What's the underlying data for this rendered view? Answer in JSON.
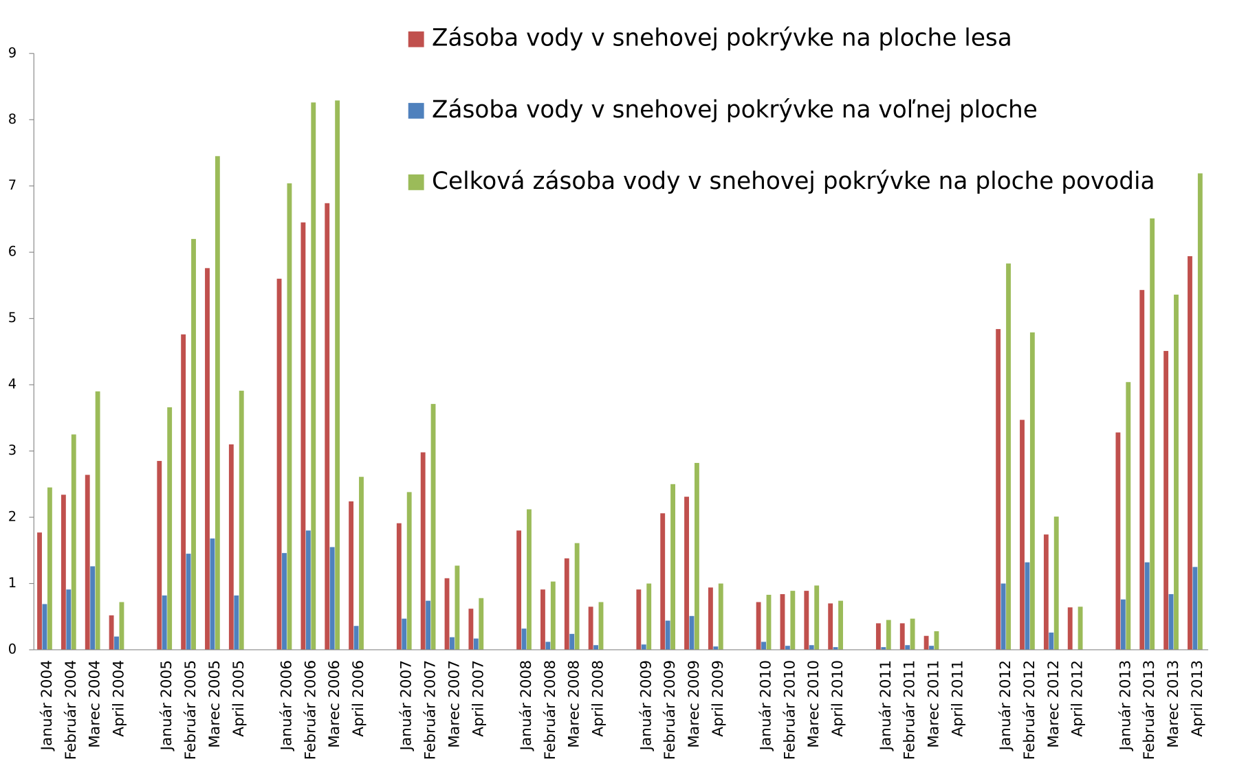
{
  "chart_data": {
    "type": "bar",
    "categories": [
      "Január 2004",
      "Február 2004",
      "Marec 2004",
      "April 2004",
      null,
      "Január 2005",
      "Február 2005",
      "Marec 2005",
      "April 2005",
      null,
      "Január 2006",
      "Február 2006",
      "Marec 2006",
      "April 2006",
      null,
      "Január 2007",
      "Február 2007",
      "Marec 2007",
      "April 2007",
      null,
      "Január 2008",
      "Február 2008",
      "Marec 2008",
      "April 2008",
      null,
      "Január 2009",
      "Február 2009",
      "Marec 2009",
      "April 2009",
      null,
      "Január 2010",
      "Február 2010",
      "Marec 2010",
      "April 2010",
      null,
      "Január 2011",
      "Február 2011",
      "Marec 2011",
      "April 2011",
      null,
      "Január 2012",
      "Február 2012",
      "Marec 2012",
      "April 2012",
      null,
      "Január 2013",
      "Február 2013",
      "Marec 2013",
      "April 2013"
    ],
    "series": [
      {
        "name": "Zásoba vody v snehovej pokrývke na ploche lesa",
        "color": "#c0504d",
        "values": [
          1.77,
          2.34,
          2.64,
          0.52,
          null,
          2.85,
          4.76,
          5.76,
          3.1,
          null,
          5.6,
          6.45,
          6.74,
          2.24,
          null,
          1.91,
          2.98,
          1.08,
          0.62,
          null,
          1.8,
          0.91,
          1.38,
          0.65,
          null,
          0.91,
          2.06,
          2.31,
          0.94,
          null,
          0.72,
          0.84,
          0.89,
          0.7,
          null,
          0.4,
          0.4,
          0.21,
          0,
          null,
          4.84,
          3.47,
          1.74,
          0.64,
          null,
          3.28,
          5.43,
          4.51,
          5.94
        ]
      },
      {
        "name": "Zásoba vody v snehovej pokrývke na voľnej ploche",
        "color": "#4f81bd",
        "values": [
          0.69,
          0.91,
          1.26,
          0.2,
          null,
          0.82,
          1.45,
          1.68,
          0.82,
          null,
          1.46,
          1.8,
          1.55,
          0.36,
          null,
          0.47,
          0.74,
          0.19,
          0.17,
          null,
          0.32,
          0.12,
          0.24,
          0.07,
          null,
          0.08,
          0.44,
          0.51,
          0.05,
          null,
          0.12,
          0.06,
          0.07,
          0.04,
          null,
          0.04,
          0.07,
          0.06,
          0,
          null,
          1.0,
          1.32,
          0.26,
          0,
          null,
          0.76,
          1.32,
          0.84,
          1.25
        ]
      },
      {
        "name": "Celková zásoba vody v snehovej pokrývke na ploche povodia",
        "color": "#9bbb59",
        "values": [
          2.45,
          3.25,
          3.9,
          0.72,
          null,
          3.66,
          6.2,
          7.45,
          3.91,
          null,
          7.04,
          8.26,
          8.29,
          2.61,
          null,
          2.38,
          3.71,
          1.27,
          0.78,
          null,
          2.12,
          1.03,
          1.61,
          0.72,
          null,
          1.0,
          2.5,
          2.82,
          1.0,
          null,
          0.83,
          0.89,
          0.97,
          0.74,
          null,
          0.45,
          0.47,
          0.28,
          0,
          null,
          5.83,
          4.79,
          2.01,
          0.65,
          null,
          4.04,
          6.51,
          5.36,
          7.19
        ]
      }
    ],
    "ylim": [
      0,
      9
    ],
    "yticks": [
      0,
      1,
      2,
      3,
      4,
      5,
      6,
      7,
      8,
      9
    ],
    "legend": "top-right"
  }
}
